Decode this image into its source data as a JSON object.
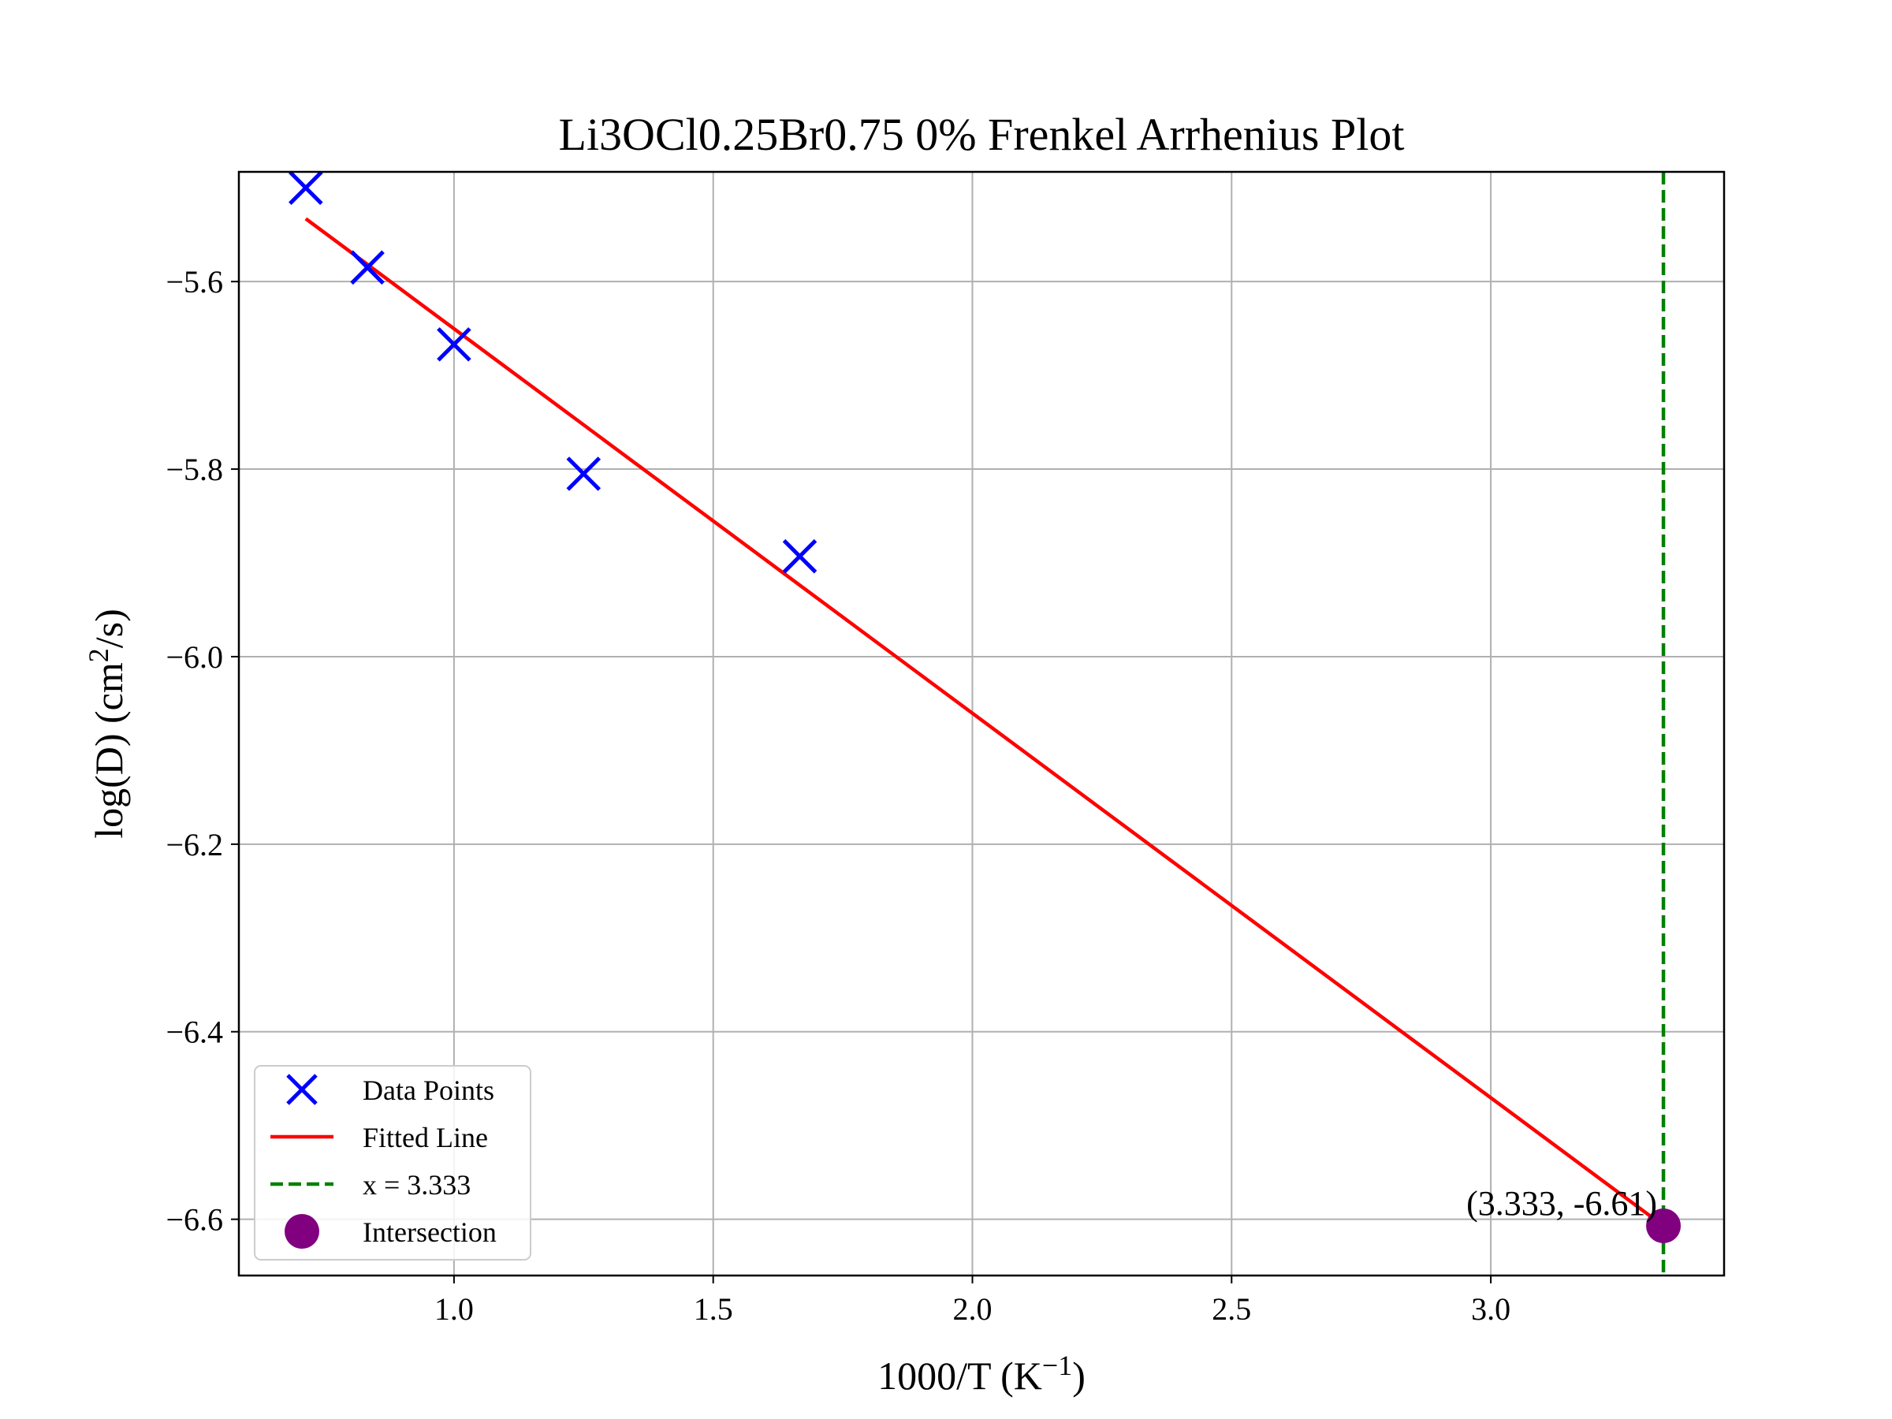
{
  "chart_data": {
    "type": "scatter",
    "title": "Li3OCl0.25Br0.75 0% Frenkel Arrhenius Plot",
    "xlabel_main": "1000/T (K",
    "xlabel_sup": "−1",
    "xlabel_end": ")",
    "ylabel_main": "log(D) (cm",
    "ylabel_sup": "2",
    "ylabel_end": "/s)",
    "xlim": [
      0.585,
      3.45
    ],
    "ylim": [
      -6.66,
      -5.483
    ],
    "x_ticks": [
      1.0,
      1.5,
      2.0,
      2.5,
      3.0
    ],
    "x_tick_labels": [
      "1.0",
      "1.5",
      "2.0",
      "2.5",
      "3.0"
    ],
    "y_ticks": [
      -5.6,
      -5.8,
      -6.0,
      -6.2,
      -6.4,
      -6.6
    ],
    "y_tick_labels": [
      "−5.6",
      "−5.8",
      "−6.0",
      "−6.2",
      "−6.4",
      "−6.6"
    ],
    "grid": true,
    "legend_position": "lower-left",
    "series": [
      {
        "name": "Data Points",
        "kind": "scatter",
        "marker": "x",
        "color": "#0000ff",
        "x": [
          0.714,
          0.833,
          1.0,
          1.25,
          1.667
        ],
        "y": [
          -5.5,
          -5.585,
          -5.667,
          -5.805,
          -5.893
        ]
      },
      {
        "name": "Fitted Line",
        "kind": "line",
        "color": "#ff0000",
        "x": [
          0.714,
          3.333
        ],
        "y": [
          -5.533,
          -6.607
        ]
      },
      {
        "name": "x = 3.333",
        "kind": "vline",
        "color": "#008000",
        "x": 3.333
      },
      {
        "name": "Intersection",
        "kind": "point",
        "color": "#800080",
        "x": 3.333,
        "y": -6.607
      }
    ],
    "annotation": {
      "text": "(3.333, -6.61)",
      "x": 3.333,
      "y": -6.607
    }
  }
}
